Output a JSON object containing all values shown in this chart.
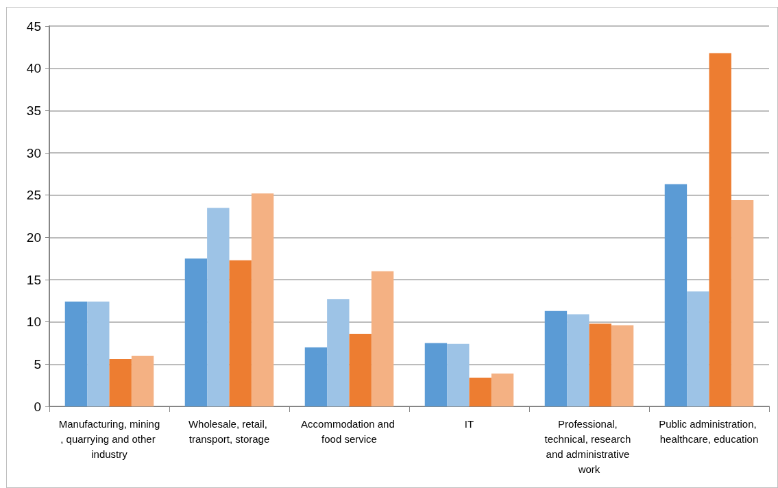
{
  "chart_data": {
    "type": "bar",
    "categories": [
      "Manufacturing, mining, quarrying and other industry",
      "Wholesale, retail, transport, storage",
      "Accommodation and food service",
      "IT",
      "Professional, technical, research and administrative work",
      "Public administration, healthcare, education"
    ],
    "series": [
      {
        "color": "#5b9bd5",
        "values": [
          12.4,
          17.5,
          7.0,
          7.5,
          11.3,
          26.3
        ]
      },
      {
        "color": "#9dc3e6",
        "values": [
          12.4,
          23.5,
          12.7,
          7.4,
          10.9,
          13.6
        ]
      },
      {
        "color": "#ed7d31",
        "values": [
          5.6,
          17.3,
          8.6,
          3.4,
          9.8,
          41.8
        ]
      },
      {
        "color": "#f4b183",
        "values": [
          6.0,
          25.2,
          16.0,
          3.9,
          9.6,
          24.4
        ]
      }
    ],
    "ylim": [
      0,
      45
    ],
    "yticks": [
      0,
      5,
      10,
      15,
      20,
      25,
      30,
      35,
      40,
      45
    ],
    "grid": "y"
  }
}
